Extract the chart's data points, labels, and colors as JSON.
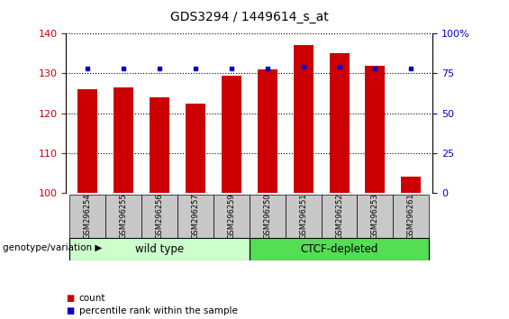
{
  "title": "GDS3294 / 1449614_s_at",
  "samples": [
    "GSM296254",
    "GSM296255",
    "GSM296256",
    "GSM296257",
    "GSM296259",
    "GSM296250",
    "GSM296251",
    "GSM296252",
    "GSM296253",
    "GSM296261"
  ],
  "counts": [
    126,
    126.5,
    124,
    122.5,
    129.5,
    131,
    137,
    135,
    132,
    104
  ],
  "percentile_ranks": [
    78,
    78,
    78,
    78,
    78,
    78,
    79,
    79,
    78,
    78
  ],
  "ylim_left": [
    100,
    140
  ],
  "ylim_right": [
    0,
    100
  ],
  "yticks_left": [
    100,
    110,
    120,
    130,
    140
  ],
  "yticks_right": [
    0,
    25,
    50,
    75,
    100
  ],
  "bar_color": "#cc0000",
  "dot_color": "#0000cc",
  "groups": [
    {
      "label": "wild type",
      "start": 0,
      "end": 5,
      "color": "#ccffcc"
    },
    {
      "label": "CTCF-depleted",
      "start": 5,
      "end": 10,
      "color": "#55dd55"
    }
  ],
  "group_label": "genotype/variation",
  "legend_items": [
    {
      "label": "count",
      "color": "#cc0000"
    },
    {
      "label": "percentile rank within the sample",
      "color": "#0000cc"
    }
  ],
  "bar_width": 0.55,
  "tick_label_color_left": "#cc0000",
  "tick_label_color_right": "#0000cc",
  "sample_box_color": "#c8c8c8",
  "background_color": "#ffffff"
}
